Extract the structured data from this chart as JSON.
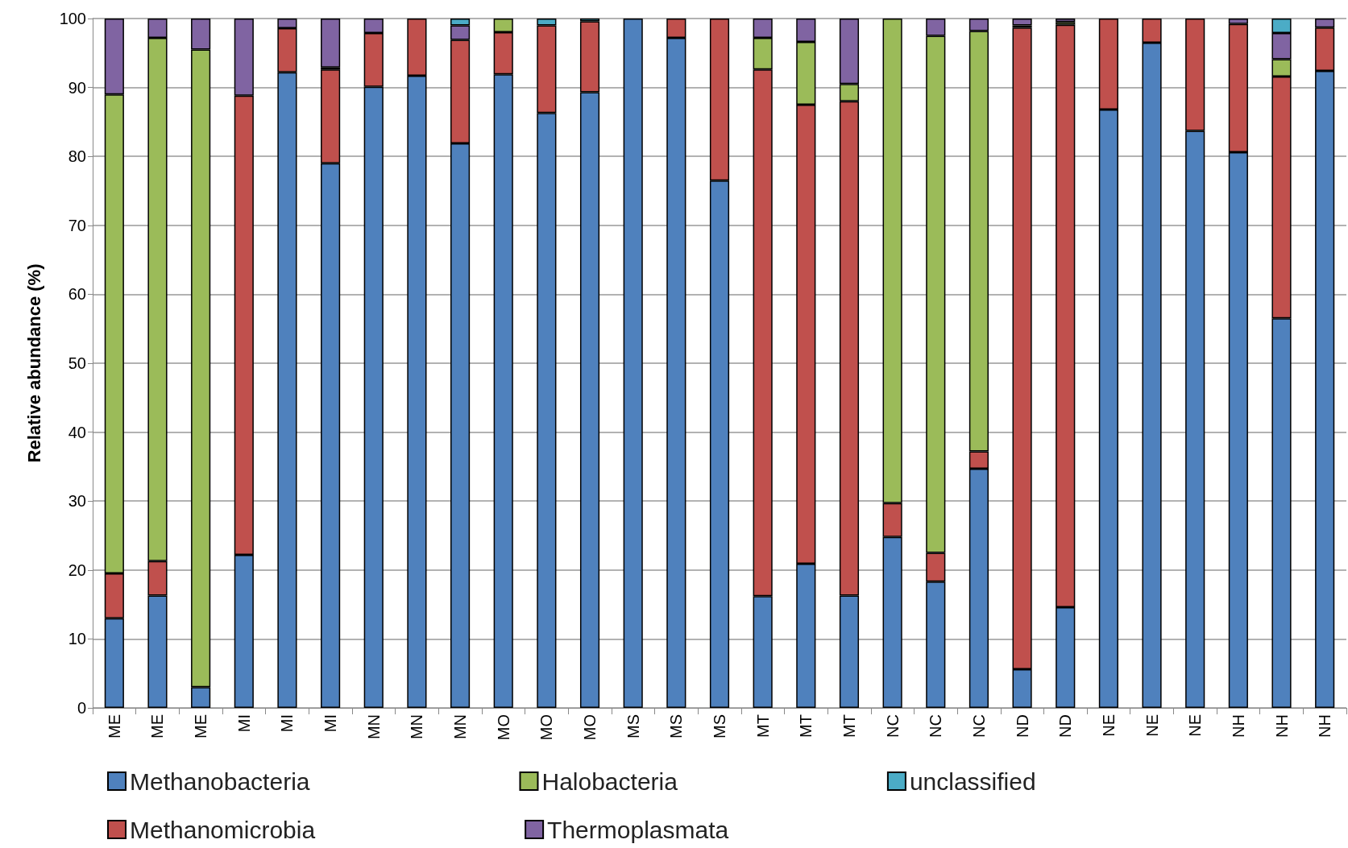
{
  "chart_data": {
    "type": "bar",
    "stacked": true,
    "ylabel": "Relative abundance (%)",
    "categories": [
      "ME",
      "ME",
      "ME",
      "MI",
      "MI",
      "MI",
      "MN",
      "MN",
      "MN",
      "MO",
      "MO",
      "MO",
      "MS",
      "MS",
      "MS",
      "MT",
      "MT",
      "MT",
      "NC",
      "NC",
      "NC",
      "ND",
      "ND",
      "NE",
      "NE",
      "NE",
      "NH",
      "NH",
      "NH"
    ],
    "series": [
      {
        "name": "Methanobacteria",
        "color": "#4f81bd",
        "values": [
          13,
          16.3,
          3,
          22.2,
          92.2,
          79,
          90.1,
          91.7,
          81.9,
          91.9,
          86.3,
          89.3,
          100,
          97.2,
          76.5,
          16.2,
          20.9,
          16.3,
          24.8,
          18.3,
          34.7,
          5.6,
          14.6,
          86.8,
          96.5,
          83.7,
          80.6,
          56.5,
          92.4
        ]
      },
      {
        "name": "Methanomicrobia",
        "color": "#c0504d",
        "values": [
          6.5,
          5,
          0,
          66.6,
          6.4,
          13.6,
          7.8,
          8.3,
          15,
          6.1,
          12.7,
          10.3,
          0,
          2.8,
          23.5,
          76.4,
          66.6,
          71.7,
          4.9,
          4.2,
          2.5,
          93.1,
          84.5,
          13.2,
          3.5,
          16.3,
          18.6,
          35.1,
          6.3
        ]
      },
      {
        "name": "Halobacteria",
        "color": "#9bbb59",
        "values": [
          69.5,
          75.9,
          92.5,
          0,
          0,
          0.3,
          0,
          0,
          0,
          2,
          0,
          0,
          0,
          0,
          0,
          4.6,
          9.1,
          2.5,
          70.3,
          75,
          61,
          0.3,
          0.4,
          0,
          0,
          0,
          0,
          2.5,
          0
        ]
      },
      {
        "name": "Thermoplasmata",
        "color": "#8064a2",
        "values": [
          11,
          2.8,
          4.5,
          11.2,
          1.4,
          7.1,
          2.1,
          0,
          2.1,
          0,
          0,
          0,
          0,
          0,
          0,
          2.8,
          3.4,
          9.5,
          0,
          2.5,
          1.8,
          1,
          0.5,
          0,
          0,
          0,
          0.8,
          3.8,
          1.3
        ]
      },
      {
        "name": "unclassified",
        "color": "#4bacc6",
        "values": [
          0,
          0,
          0,
          0,
          0,
          0,
          0,
          0,
          1,
          0,
          1,
          0.4,
          0,
          0,
          0,
          0,
          0,
          0,
          0,
          0,
          0,
          0,
          0,
          0,
          0,
          0,
          0,
          2.1,
          0
        ]
      }
    ],
    "ylim": [
      0,
      100
    ],
    "yticks": [
      0,
      10,
      20,
      30,
      40,
      50,
      60,
      70,
      80,
      90,
      100
    ],
    "grid": "y",
    "legend": "bottom"
  }
}
